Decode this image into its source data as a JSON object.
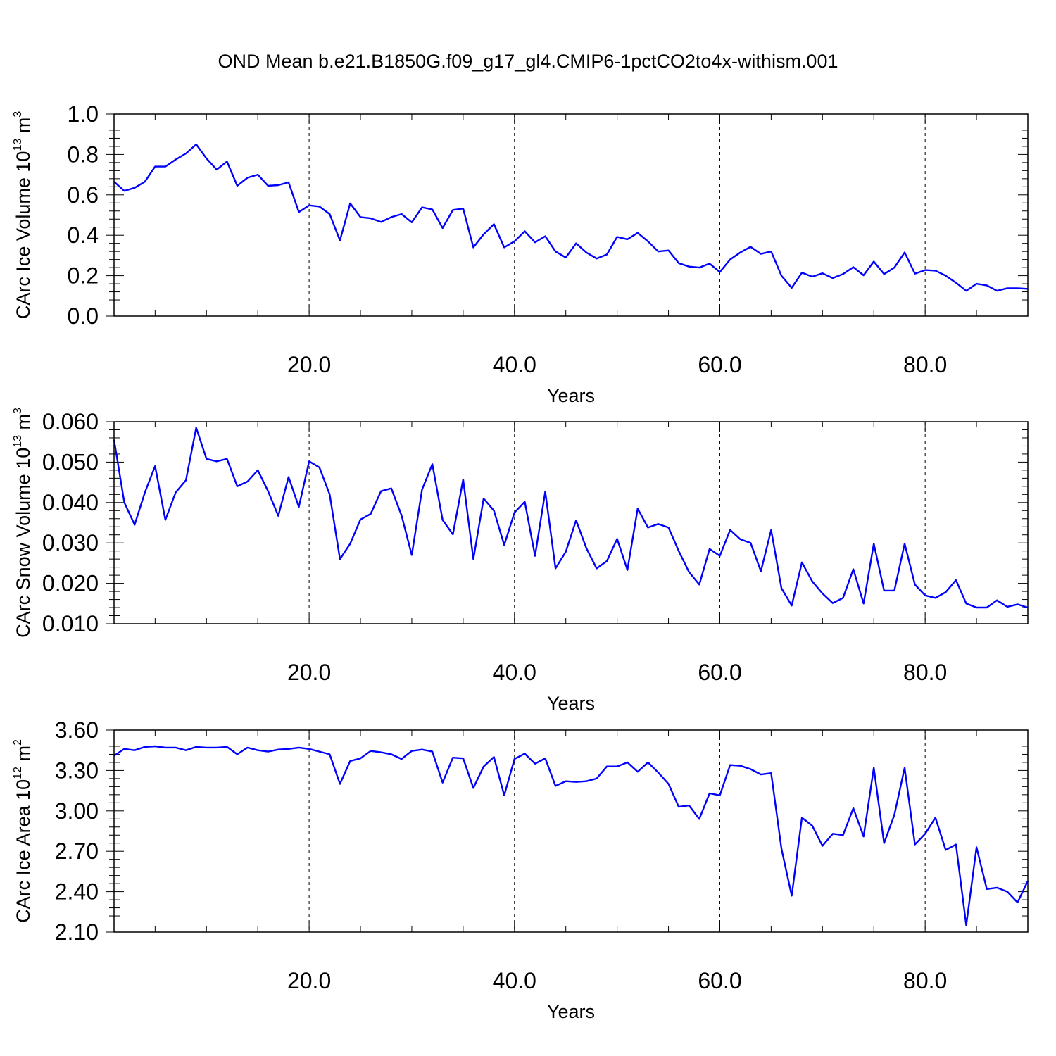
{
  "title": "OND Mean b.e21.B1850G.f09_g17_gl4.CMIP6-1pctCO2to4x-withism.001",
  "chart_data": [
    {
      "type": "line",
      "title": "OND Mean b.e21.B1850G.f09_g17_gl4.CMIP6-1pctCO2to4x-withism.001",
      "xlabel": "Years",
      "ylabel": "CArc Ice Volume 10",
      "ylabel_sup": "13",
      "ylabel_unit": " m",
      "ylabel_unit_sup": "3",
      "xlim": [
        1,
        90
      ],
      "ylim": [
        0.0,
        1.0
      ],
      "xticks": [
        "20.0",
        "40.0",
        "60.0",
        "80.0"
      ],
      "yticks": [
        "0.0",
        "0.2",
        "0.4",
        "0.6",
        "0.8",
        "1.0"
      ],
      "grid": "dashed vertical at major x ticks",
      "color": "#0000ff",
      "x": [
        1,
        2,
        3,
        4,
        5,
        6,
        7,
        8,
        9,
        10,
        11,
        12,
        13,
        14,
        15,
        16,
        17,
        18,
        19,
        20,
        21,
        22,
        23,
        24,
        25,
        26,
        27,
        28,
        29,
        30,
        31,
        32,
        33,
        34,
        35,
        36,
        37,
        38,
        39,
        40,
        41,
        42,
        43,
        44,
        45,
        46,
        47,
        48,
        49,
        50,
        51,
        52,
        53,
        54,
        55,
        56,
        57,
        58,
        59,
        60,
        61,
        62,
        63,
        64,
        65,
        66,
        67,
        68,
        69,
        70,
        71,
        72,
        73,
        74,
        75,
        76,
        77,
        78,
        79,
        80,
        81,
        82,
        83,
        84,
        85,
        86,
        87,
        88,
        89,
        90
      ],
      "y": [
        0.665,
        0.62,
        0.635,
        0.665,
        0.74,
        0.74,
        0.775,
        0.805,
        0.85,
        0.78,
        0.725,
        0.765,
        0.645,
        0.685,
        0.7,
        0.645,
        0.648,
        0.662,
        0.515,
        0.548,
        0.542,
        0.505,
        0.375,
        0.558,
        0.49,
        0.484,
        0.466,
        0.49,
        0.505,
        0.464,
        0.538,
        0.528,
        0.436,
        0.525,
        0.532,
        0.34,
        0.405,
        0.455,
        0.34,
        0.37,
        0.42,
        0.365,
        0.395,
        0.32,
        0.29,
        0.36,
        0.315,
        0.285,
        0.305,
        0.392,
        0.38,
        0.412,
        0.37,
        0.32,
        0.325,
        0.262,
        0.245,
        0.24,
        0.26,
        0.218,
        0.28,
        0.315,
        0.343,
        0.308,
        0.32,
        0.2,
        0.14,
        0.215,
        0.195,
        0.212,
        0.188,
        0.208,
        0.242,
        0.202,
        0.27,
        0.208,
        0.24,
        0.315,
        0.21,
        0.228,
        0.225,
        0.2,
        0.165,
        0.125,
        0.16,
        0.152,
        0.125,
        0.138,
        0.138,
        0.135
      ]
    },
    {
      "type": "line",
      "xlabel": "Years",
      "ylabel": "CArc Snow Volume 10",
      "ylabel_sup": "13",
      "ylabel_unit": " m",
      "ylabel_unit_sup": "3",
      "xlim": [
        1,
        90
      ],
      "ylim": [
        0.01,
        0.06
      ],
      "xticks": [
        "20.0",
        "40.0",
        "60.0",
        "80.0"
      ],
      "yticks": [
        "0.010",
        "0.020",
        "0.030",
        "0.040",
        "0.050",
        "0.060"
      ],
      "grid": "dashed vertical at major x ticks",
      "color": "#0000ff",
      "x": [
        1,
        2,
        3,
        4,
        5,
        6,
        7,
        8,
        9,
        10,
        11,
        12,
        13,
        14,
        15,
        16,
        17,
        18,
        19,
        20,
        21,
        22,
        23,
        24,
        25,
        26,
        27,
        28,
        29,
        30,
        31,
        32,
        33,
        34,
        35,
        36,
        37,
        38,
        39,
        40,
        41,
        42,
        43,
        44,
        45,
        46,
        47,
        48,
        49,
        50,
        51,
        52,
        53,
        54,
        55,
        56,
        57,
        58,
        59,
        60,
        61,
        62,
        63,
        64,
        65,
        66,
        67,
        68,
        69,
        70,
        71,
        72,
        73,
        74,
        75,
        76,
        77,
        78,
        79,
        80,
        81,
        82,
        83,
        84,
        85,
        86,
        87,
        88,
        89,
        90
      ],
      "y": [
        0.0555,
        0.04,
        0.0345,
        0.0425,
        0.049,
        0.0357,
        0.0425,
        0.0455,
        0.0585,
        0.0508,
        0.0502,
        0.0508,
        0.044,
        0.0452,
        0.048,
        0.0428,
        0.0367,
        0.0463,
        0.0389,
        0.0502,
        0.0487,
        0.042,
        0.026,
        0.0298,
        0.0358,
        0.0372,
        0.0428,
        0.0435,
        0.0368,
        0.027,
        0.0432,
        0.0495,
        0.0357,
        0.0321,
        0.0457,
        0.026,
        0.041,
        0.038,
        0.0295,
        0.0375,
        0.0402,
        0.0268,
        0.0427,
        0.0237,
        0.0278,
        0.0356,
        0.0287,
        0.0237,
        0.0255,
        0.031,
        0.0233,
        0.0385,
        0.0338,
        0.0347,
        0.0338,
        0.028,
        0.0228,
        0.0197,
        0.0285,
        0.0268,
        0.0332,
        0.0309,
        0.03,
        0.023,
        0.0332,
        0.0188,
        0.0145,
        0.0252,
        0.0205,
        0.0175,
        0.0151,
        0.0164,
        0.0235,
        0.015,
        0.0298,
        0.0182,
        0.0182,
        0.0298,
        0.0197,
        0.017,
        0.0164,
        0.0178,
        0.0208,
        0.015,
        0.014,
        0.014,
        0.0158,
        0.0142,
        0.0148,
        0.014
      ]
    },
    {
      "type": "line",
      "xlabel": "Years",
      "ylabel": "CArc Ice Area 10",
      "ylabel_sup": "12",
      "ylabel_unit": " m",
      "ylabel_unit_sup": "2",
      "xlim": [
        1,
        90
      ],
      "ylim": [
        2.1,
        3.6
      ],
      "xticks": [
        "20.0",
        "40.0",
        "60.0",
        "80.0"
      ],
      "yticks": [
        "2.10",
        "2.40",
        "2.70",
        "3.00",
        "3.30",
        "3.60"
      ],
      "grid": "dashed vertical at major x ticks",
      "color": "#0000ff",
      "x": [
        1,
        2,
        3,
        4,
        5,
        6,
        7,
        8,
        9,
        10,
        11,
        12,
        13,
        14,
        15,
        16,
        17,
        18,
        19,
        20,
        21,
        22,
        23,
        24,
        25,
        26,
        27,
        28,
        29,
        30,
        31,
        32,
        33,
        34,
        35,
        36,
        37,
        38,
        39,
        40,
        41,
        42,
        43,
        44,
        45,
        46,
        47,
        48,
        49,
        50,
        51,
        52,
        53,
        54,
        55,
        56,
        57,
        58,
        59,
        60,
        61,
        62,
        63,
        64,
        65,
        66,
        67,
        68,
        69,
        70,
        71,
        72,
        73,
        74,
        75,
        76,
        77,
        78,
        79,
        80,
        81,
        82,
        83,
        84,
        85,
        86,
        87,
        88,
        89,
        90
      ],
      "y": [
        3.41,
        3.46,
        3.45,
        3.475,
        3.48,
        3.47,
        3.47,
        3.45,
        3.475,
        3.47,
        3.47,
        3.475,
        3.42,
        3.47,
        3.45,
        3.44,
        3.455,
        3.46,
        3.47,
        3.46,
        3.44,
        3.42,
        3.2,
        3.37,
        3.39,
        3.445,
        3.435,
        3.42,
        3.385,
        3.445,
        3.455,
        3.44,
        3.21,
        3.395,
        3.39,
        3.17,
        3.33,
        3.4,
        3.115,
        3.385,
        3.425,
        3.35,
        3.39,
        3.185,
        3.22,
        3.215,
        3.22,
        3.24,
        3.33,
        3.33,
        3.36,
        3.29,
        3.36,
        3.285,
        3.2,
        3.03,
        3.04,
        2.94,
        3.13,
        3.115,
        3.34,
        3.335,
        3.31,
        3.27,
        3.28,
        2.72,
        2.37,
        2.95,
        2.89,
        2.74,
        2.83,
        2.82,
        3.02,
        2.81,
        3.32,
        2.76,
        2.97,
        3.32,
        2.75,
        2.83,
        2.95,
        2.71,
        2.75,
        2.15,
        2.73,
        2.42,
        2.43,
        2.4,
        2.32,
        2.48
      ]
    }
  ]
}
